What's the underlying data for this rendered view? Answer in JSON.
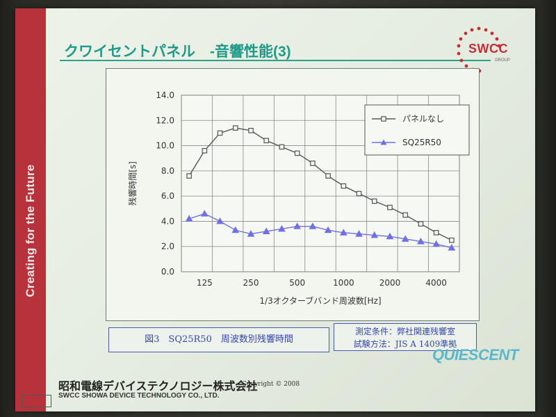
{
  "slide": {
    "vertical_text": "Creating for the Future",
    "title": "クワイセントパネル　-音響性能(3)",
    "logo_text": "SWCC",
    "logo_sub": "GROUP",
    "caption_left": "図3　SQ25R50　周波数別残響時間",
    "caption_right_line1": "測定条件：弊社関連残響室",
    "caption_right_line2": "試験方法：JIS A 1409準拠",
    "quiescent_logo": "QUIESCENT",
    "company_jp": "昭和電線デバイステクノロジー株式会社",
    "company_en": "SWCC SHOWA DEVICE TECHNOLOGY CO., LTD.",
    "copyright": "Copyright © 2008"
  },
  "chart_data": {
    "type": "line",
    "xlabel": "1/3オクターブバンド周波数[Hz]",
    "ylabel": "残響時間[s]",
    "ylim": [
      0,
      14
    ],
    "yticks": [
      "0.0",
      "2.0",
      "4.0",
      "6.0",
      "8.0",
      "10.0",
      "12.0",
      "14.0"
    ],
    "x": [
      100,
      125,
      160,
      200,
      250,
      315,
      400,
      500,
      630,
      800,
      1000,
      1250,
      1600,
      2000,
      2500,
      3150,
      4000,
      5000
    ],
    "xtick_labels": [
      "125",
      "250",
      "500",
      "1000",
      "2000",
      "4000"
    ],
    "xtick_values": [
      125,
      250,
      500,
      1000,
      2000,
      4000
    ],
    "grid": true,
    "legend_position": "top-right",
    "series": [
      {
        "name": "パネルなし",
        "color": "#555555",
        "marker": "square",
        "values": [
          7.6,
          9.6,
          11.0,
          11.4,
          11.2,
          10.4,
          9.9,
          9.4,
          8.6,
          7.6,
          6.8,
          6.2,
          5.6,
          5.1,
          4.5,
          3.8,
          3.1,
          2.5
        ]
      },
      {
        "name": "SQ25R50",
        "color": "#7070e0",
        "marker": "triangle",
        "values": [
          4.2,
          4.6,
          4.0,
          3.3,
          3.0,
          3.2,
          3.4,
          3.6,
          3.6,
          3.3,
          3.1,
          3.0,
          2.9,
          2.8,
          2.6,
          2.4,
          2.2,
          1.9
        ]
      }
    ]
  }
}
